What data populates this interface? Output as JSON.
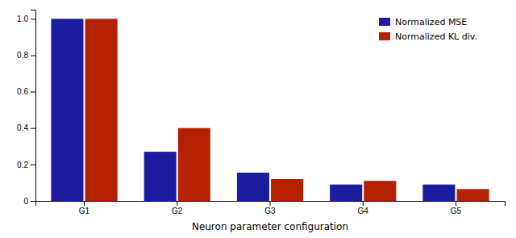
{
  "chart_data": {
    "type": "bar",
    "xlabel": "Neuron parameter configuration",
    "categories": [
      "G1",
      "G2",
      "G3",
      "G4",
      "G5"
    ],
    "series": [
      {
        "name": "Normalized MSE",
        "color": "#1c1c9e",
        "values": [
          1.0,
          0.27,
          0.155,
          0.09,
          0.09
        ]
      },
      {
        "name": "Normalized KL div.",
        "color": "#b52000",
        "values": [
          1.0,
          0.4,
          0.12,
          0.11,
          0.065
        ]
      }
    ],
    "ylim": [
      0,
      1.05
    ],
    "yticks": [
      0,
      0.2,
      0.4,
      0.6,
      0.8,
      {
        "value": 1.0,
        "label": "1.0"
      }
    ],
    "grid": false,
    "legend": "upper right"
  }
}
